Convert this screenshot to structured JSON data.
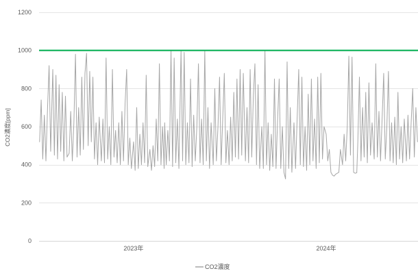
{
  "chart_data": {
    "type": "line",
    "ylabel": "CO2濃度[ppm]",
    "ylim": [
      0,
      1200
    ],
    "yticks": [
      0,
      200,
      400,
      600,
      800,
      1000,
      1200
    ],
    "x_scale": "date",
    "xlim": [
      "2022-07-06",
      "2024-06-23"
    ],
    "xticks": [
      {
        "value": "2023-01-01",
        "label": "2023年"
      },
      {
        "value": "2024-01-01",
        "label": "2024年"
      }
    ],
    "grid": {
      "y": true,
      "x": false
    },
    "legend": {
      "position": "bottom"
    },
    "reference_lines": [
      {
        "value": 1000,
        "color": "#00b050"
      }
    ],
    "x": [
      "2022-07-07",
      "2022-07-10",
      "2022-07-13",
      "2022-07-16",
      "2022-07-19",
      "2022-07-22",
      "2022-07-25",
      "2022-07-28",
      "2022-08-01",
      "2022-08-04",
      "2022-08-07",
      "2022-08-10",
      "2022-08-13",
      "2022-08-16",
      "2022-08-19",
      "2022-08-22",
      "2022-08-25",
      "2022-08-28",
      "2022-09-01",
      "2022-09-04",
      "2022-09-07",
      "2022-09-10",
      "2022-09-13",
      "2022-09-16",
      "2022-09-19",
      "2022-09-22",
      "2022-09-25",
      "2022-09-28",
      "2022-10-01",
      "2022-10-04",
      "2022-10-07",
      "2022-10-10",
      "2022-10-13",
      "2022-10-16",
      "2022-10-19",
      "2022-10-22",
      "2022-10-25",
      "2022-10-28",
      "2022-11-01",
      "2022-11-04",
      "2022-11-07",
      "2022-11-10",
      "2022-11-13",
      "2022-11-16",
      "2022-11-19",
      "2022-11-22",
      "2022-11-25",
      "2022-11-28",
      "2022-12-01",
      "2022-12-04",
      "2022-12-07",
      "2022-12-10",
      "2022-12-13",
      "2022-12-16",
      "2022-12-19",
      "2022-12-22",
      "2022-12-25",
      "2022-12-28",
      "2023-01-01",
      "2023-01-04",
      "2023-01-07",
      "2023-01-10",
      "2023-01-13",
      "2023-01-16",
      "2023-01-19",
      "2023-01-22",
      "2023-01-25",
      "2023-01-28",
      "2023-02-01",
      "2023-02-04",
      "2023-02-07",
      "2023-02-10",
      "2023-02-13",
      "2023-02-16",
      "2023-02-19",
      "2023-02-22",
      "2023-02-25",
      "2023-02-28",
      "2023-03-01",
      "2023-03-04",
      "2023-03-07",
      "2023-03-10",
      "2023-03-13",
      "2023-03-16",
      "2023-03-19",
      "2023-03-22",
      "2023-03-25",
      "2023-03-28",
      "2023-04-01",
      "2023-04-04",
      "2023-04-07",
      "2023-04-10",
      "2023-04-13",
      "2023-04-16",
      "2023-04-19",
      "2023-04-22",
      "2023-04-25",
      "2023-04-28",
      "2023-05-01",
      "2023-05-04",
      "2023-05-07",
      "2023-05-10",
      "2023-05-13",
      "2023-05-16",
      "2023-05-19",
      "2023-05-22",
      "2023-05-25",
      "2023-05-28",
      "2023-06-01",
      "2023-06-04",
      "2023-06-07",
      "2023-06-10",
      "2023-06-13",
      "2023-06-16",
      "2023-06-19",
      "2023-06-22",
      "2023-06-25",
      "2023-06-28",
      "2023-07-01",
      "2023-07-04",
      "2023-07-07",
      "2023-07-10",
      "2023-07-13",
      "2023-07-16",
      "2023-07-19",
      "2023-07-22",
      "2023-07-25",
      "2023-07-28",
      "2023-08-01",
      "2023-08-04",
      "2023-08-07",
      "2023-08-10",
      "2023-08-13",
      "2023-08-16",
      "2023-08-19",
      "2023-08-22",
      "2023-08-25",
      "2023-08-28",
      "2023-09-01",
      "2023-09-04",
      "2023-09-07",
      "2023-09-10",
      "2023-09-13",
      "2023-09-16",
      "2023-09-19",
      "2023-09-22",
      "2023-09-25",
      "2023-09-28",
      "2023-10-01",
      "2023-10-04",
      "2023-10-07",
      "2023-10-10",
      "2023-10-13",
      "2023-10-16",
      "2023-10-19",
      "2023-10-22",
      "2023-10-25",
      "2023-10-28",
      "2023-11-01",
      "2023-11-04",
      "2023-11-07",
      "2023-11-10",
      "2023-11-13",
      "2023-11-16",
      "2023-11-19",
      "2023-11-22",
      "2023-11-25",
      "2023-11-28",
      "2023-12-01",
      "2023-12-04",
      "2023-12-07",
      "2023-12-10",
      "2023-12-13",
      "2023-12-16",
      "2023-12-19",
      "2023-12-22",
      "2023-12-25",
      "2023-12-28",
      "2024-01-01",
      "2024-01-04",
      "2024-01-07",
      "2024-01-10",
      "2024-01-13",
      "2024-01-16",
      "2024-01-19",
      "2024-01-22",
      "2024-01-25",
      "2024-01-28",
      "2024-02-01",
      "2024-02-04",
      "2024-02-07",
      "2024-02-10",
      "2024-02-13",
      "2024-02-16",
      "2024-02-19",
      "2024-02-22",
      "2024-02-25",
      "2024-02-28",
      "2024-03-01",
      "2024-03-04",
      "2024-03-07",
      "2024-03-10",
      "2024-03-13",
      "2024-03-16",
      "2024-03-19",
      "2024-03-22",
      "2024-03-25",
      "2024-03-28",
      "2024-04-01",
      "2024-04-04",
      "2024-04-07",
      "2024-04-10",
      "2024-04-13",
      "2024-04-16",
      "2024-04-19",
      "2024-04-22",
      "2024-04-25",
      "2024-04-28",
      "2024-05-01",
      "2024-05-04",
      "2024-05-07",
      "2024-05-10",
      "2024-05-13",
      "2024-05-16",
      "2024-05-19",
      "2024-05-22",
      "2024-05-25",
      "2024-05-28",
      "2024-06-01",
      "2024-06-04",
      "2024-06-07",
      "2024-06-10",
      "2024-06-13",
      "2024-06-16",
      "2024-06-19",
      "2024-06-22"
    ],
    "series": [
      {
        "name": "CO2濃度",
        "color": "#a6a6a6",
        "values": [
          520,
          740,
          430,
          660,
          420,
          690,
          920,
          470,
          900,
          450,
          870,
          430,
          820,
          470,
          780,
          420,
          760,
          440,
          460,
          680,
          420,
          620,
          980,
          440,
          700,
          450,
          860,
          480,
          880,
          985,
          500,
          890,
          520,
          860,
          430,
          620,
          400,
          650,
          420,
          640,
          410,
          960,
          430,
          600,
          400,
          900,
          440,
          580,
          410,
          620,
          400,
          680,
          420,
          720,
          900,
          400,
          540,
          380,
          520,
          370,
          700,
          380,
          560,
          400,
          620,
          410,
          870,
          390,
          480,
          370,
          500,
          390,
          640,
          420,
          930,
          400,
          600,
          380,
          620,
          400,
          580,
          420,
          1000,
          390,
          960,
          410,
          640,
          380,
          1000,
          420,
          990,
          400,
          620,
          410,
          850,
          390,
          660,
          420,
          600,
          930,
          410,
          640,
          400,
          1000,
          420,
          700,
          380,
          620,
          400,
          800,
          420,
          600,
          860,
          400,
          640,
          880,
          410,
          580,
          400,
          650,
          420,
          780,
          440,
          850,
          430,
          900,
          450,
          880,
          420,
          700,
          410,
          900,
          440,
          760,
          930,
          400,
          820,
          380,
          600,
          380,
          1000,
          400,
          620,
          370,
          560,
          390,
          850,
          380,
          640,
          850,
          380,
          600,
          360,
          325,
          940,
          380,
          700,
          360,
          620,
          380,
          640,
          900,
          400,
          860,
          390,
          600,
          370,
          770,
          400,
          850,
          420,
          640,
          380,
          860,
          410,
          880,
          430,
          600,
          560,
          420,
          480,
          360,
          345,
          340,
          350,
          355,
          360,
          480,
          400,
          560,
          420,
          600,
          970,
          450,
          965,
          360,
          355,
          358,
          520,
          860,
          420,
          700,
          440,
          780,
          410,
          830,
          450,
          620,
          430,
          930,
          440,
          680,
          420,
          640,
          880,
          430,
          600,
          890,
          420,
          620,
          410,
          650,
          400,
          780,
          430,
          600,
          410,
          640,
          420,
          660,
          430,
          620,
          800,
          440,
          700,
          520
        ]
      }
    ]
  }
}
